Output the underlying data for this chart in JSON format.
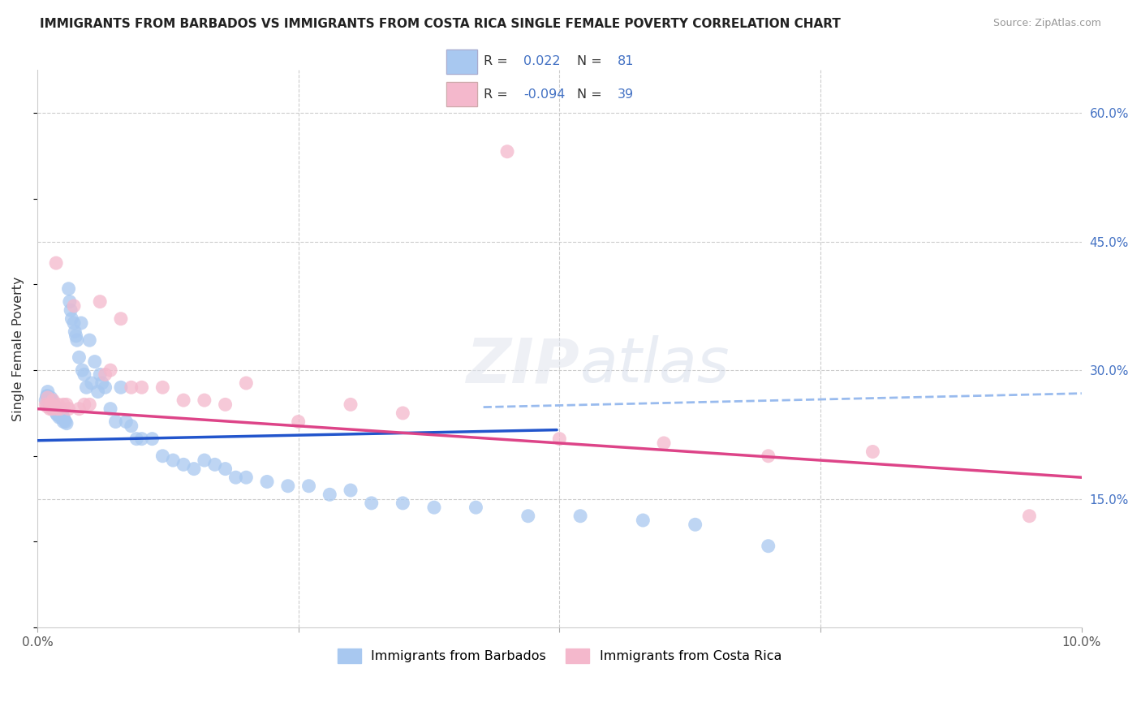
{
  "title": "IMMIGRANTS FROM BARBADOS VS IMMIGRANTS FROM COSTA RICA SINGLE FEMALE POVERTY CORRELATION CHART",
  "source": "Source: ZipAtlas.com",
  "ylabel": "Single Female Poverty",
  "legend_label1": "Immigrants from Barbados",
  "legend_label2": "Immigrants from Costa Rica",
  "R1": 0.022,
  "N1": 81,
  "R2": -0.094,
  "N2": 39,
  "color1": "#a8c8f0",
  "color2": "#f4b8cc",
  "line_color1": "#2255cc",
  "line_color2": "#dd4488",
  "dashed_line_color": "#99bbee",
  "xlim": [
    0,
    0.1
  ],
  "ylim": [
    0,
    0.65
  ],
  "y_ticks_right": [
    0.15,
    0.3,
    0.45,
    0.6
  ],
  "y_tick_labels_right": [
    "15.0%",
    "30.0%",
    "45.0%",
    "60.0%"
  ],
  "blue_line_intercept": 0.218,
  "blue_line_slope": 0.25,
  "pink_line_intercept": 0.255,
  "pink_line_slope": -0.8,
  "dashed_intercept": 0.245,
  "dashed_slope": 0.28,
  "barbados_x": [
    0.0008,
    0.0009,
    0.001,
    0.001,
    0.0012,
    0.0012,
    0.0013,
    0.0014,
    0.0014,
    0.0015,
    0.0015,
    0.0016,
    0.0017,
    0.0017,
    0.0018,
    0.0018,
    0.0019,
    0.0019,
    0.002,
    0.0021,
    0.0021,
    0.0022,
    0.0022,
    0.0023,
    0.0024,
    0.0025,
    0.0025,
    0.0026,
    0.0027,
    0.0028,
    0.003,
    0.0031,
    0.0032,
    0.0033,
    0.0035,
    0.0036,
    0.0037,
    0.0038,
    0.004,
    0.0042,
    0.0043,
    0.0045,
    0.0047,
    0.005,
    0.0052,
    0.0055,
    0.0058,
    0.006,
    0.0062,
    0.0065,
    0.007,
    0.0075,
    0.008,
    0.0085,
    0.009,
    0.0095,
    0.01,
    0.011,
    0.012,
    0.013,
    0.014,
    0.015,
    0.016,
    0.017,
    0.018,
    0.019,
    0.02,
    0.022,
    0.024,
    0.026,
    0.028,
    0.03,
    0.032,
    0.035,
    0.038,
    0.042,
    0.047,
    0.052,
    0.058,
    0.063,
    0.07
  ],
  "barbados_y": [
    0.265,
    0.27,
    0.27,
    0.275,
    0.26,
    0.265,
    0.268,
    0.26,
    0.265,
    0.255,
    0.258,
    0.26,
    0.255,
    0.258,
    0.25,
    0.255,
    0.248,
    0.252,
    0.25,
    0.248,
    0.245,
    0.248,
    0.25,
    0.245,
    0.248,
    0.245,
    0.24,
    0.242,
    0.24,
    0.238,
    0.395,
    0.38,
    0.37,
    0.36,
    0.355,
    0.345,
    0.34,
    0.335,
    0.315,
    0.355,
    0.3,
    0.295,
    0.28,
    0.335,
    0.285,
    0.31,
    0.275,
    0.295,
    0.285,
    0.28,
    0.255,
    0.24,
    0.28,
    0.24,
    0.235,
    0.22,
    0.22,
    0.22,
    0.2,
    0.195,
    0.19,
    0.185,
    0.195,
    0.19,
    0.185,
    0.175,
    0.175,
    0.17,
    0.165,
    0.165,
    0.155,
    0.16,
    0.145,
    0.145,
    0.14,
    0.14,
    0.13,
    0.13,
    0.125,
    0.12,
    0.095
  ],
  "costarica_x": [
    0.0008,
    0.0009,
    0.001,
    0.0012,
    0.0013,
    0.0014,
    0.0015,
    0.0016,
    0.0018,
    0.0019,
    0.002,
    0.0022,
    0.0025,
    0.0028,
    0.003,
    0.0035,
    0.004,
    0.0045,
    0.005,
    0.006,
    0.0065,
    0.007,
    0.008,
    0.009,
    0.01,
    0.012,
    0.014,
    0.016,
    0.018,
    0.02,
    0.025,
    0.03,
    0.035,
    0.045,
    0.05,
    0.06,
    0.07,
    0.08,
    0.095
  ],
  "costarica_y": [
    0.26,
    0.258,
    0.268,
    0.255,
    0.26,
    0.255,
    0.265,
    0.258,
    0.425,
    0.255,
    0.26,
    0.255,
    0.26,
    0.26,
    0.255,
    0.375,
    0.255,
    0.26,
    0.26,
    0.38,
    0.295,
    0.3,
    0.36,
    0.28,
    0.28,
    0.28,
    0.265,
    0.265,
    0.26,
    0.285,
    0.24,
    0.26,
    0.25,
    0.555,
    0.22,
    0.215,
    0.2,
    0.205,
    0.13
  ]
}
